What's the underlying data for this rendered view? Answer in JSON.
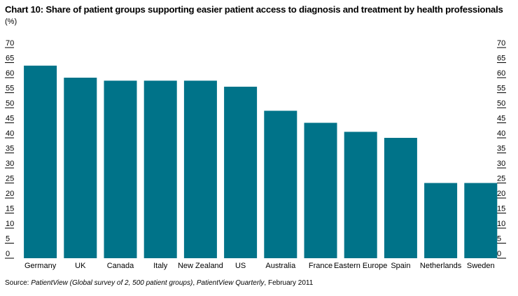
{
  "title": "Chart 10: Share of patient groups supporting easier patient access to diagnosis and treatment by health professionals",
  "unit_label": "(%)",
  "source": {
    "prefix": "Source: ",
    "italic1": "PatientView (Global survey of 2, 500 patient groups)",
    "middle": ", ",
    "italic2": "PatientView Quarterly",
    "suffix": ", February 2011"
  },
  "colors": {
    "bar": "#007389",
    "tick_line": "#000000"
  },
  "chart_data": {
    "type": "bar",
    "title": "Chart 10: Share of patient groups supporting easier patient access to diagnosis and treatment by health professionals",
    "ylabel": "(%)",
    "xlabel": "",
    "categories": [
      "Germany",
      "UK",
      "Canada",
      "Italy",
      "New Zealand",
      "US",
      "Australia",
      "France",
      "Eastern Europe",
      "Spain",
      "Netherlands",
      "Sweden"
    ],
    "values": [
      64,
      60,
      59,
      59,
      59,
      57,
      49,
      45,
      42,
      40,
      25,
      25
    ],
    "ylim": [
      0,
      70
    ],
    "yticks": [
      "0",
      "5",
      "10",
      "15",
      "20",
      "25",
      "30",
      "35",
      "40",
      "45",
      "50",
      "55",
      "60",
      "65",
      "70"
    ],
    "grid": false,
    "axes": "left-and-right"
  }
}
